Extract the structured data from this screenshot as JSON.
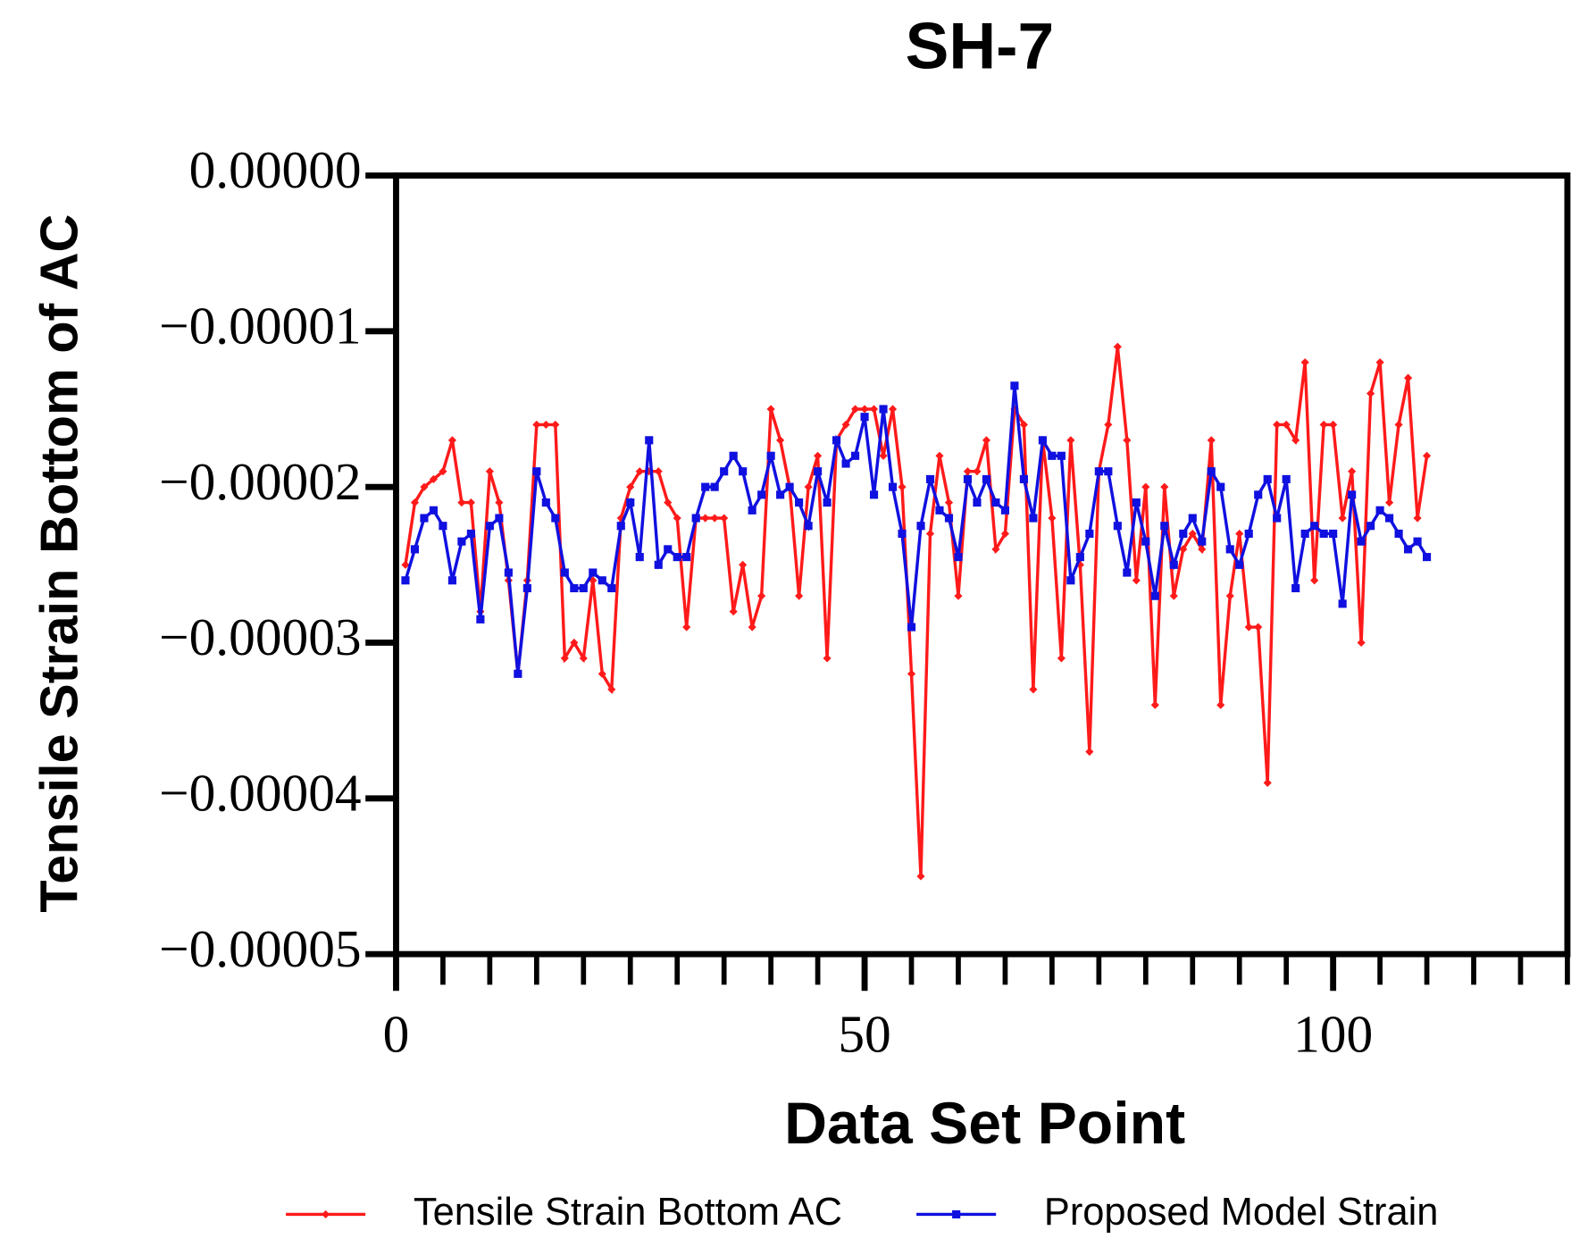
{
  "chart_data": {
    "type": "line",
    "title": "SH-7",
    "xlabel": "Data Set Point",
    "ylabel": "Tensile Strain Bottom of AC",
    "xlim": [
      0,
      125
    ],
    "xticks": [
      0,
      50,
      100
    ],
    "ylim": [
      -5e-05,
      0
    ],
    "yticks": [
      {
        "value": 0,
        "label": "0.00000"
      },
      {
        "value": -1e-05,
        "label": "−0.00001"
      },
      {
        "value": -2e-05,
        "label": "−0.00002"
      },
      {
        "value": -3e-05,
        "label": "−0.00003"
      },
      {
        "value": -4e-05,
        "label": "−0.00004"
      },
      {
        "value": -5e-05,
        "label": "−0.00005"
      }
    ],
    "legend": "bottom",
    "x": [
      1,
      2,
      3,
      4,
      5,
      6,
      7,
      8,
      9,
      10,
      11,
      12,
      13,
      14,
      15,
      16,
      17,
      18,
      19,
      20,
      21,
      22,
      23,
      24,
      25,
      26,
      27,
      28,
      29,
      30,
      31,
      32,
      33,
      34,
      35,
      36,
      37,
      38,
      39,
      40,
      41,
      42,
      43,
      44,
      45,
      46,
      47,
      48,
      49,
      50,
      51,
      52,
      53,
      54,
      55,
      56,
      57,
      58,
      59,
      60,
      61,
      62,
      63,
      64,
      65,
      66,
      67,
      68,
      69,
      70,
      71,
      72,
      73,
      74,
      75,
      76,
      77,
      78,
      79,
      80,
      81,
      82,
      83,
      84,
      85,
      86,
      87,
      88,
      89,
      90,
      91,
      92,
      93,
      94,
      95,
      96,
      97,
      98,
      99,
      100,
      101,
      102,
      103,
      104,
      105,
      106,
      107,
      108,
      109,
      110
    ],
    "series": [
      {
        "name": "Tensile Strain Bottom AC",
        "color": "#ff1a1a",
        "marker": "diamond",
        "values": [
          -2.5e-05,
          -2.1e-05,
          -2e-05,
          -1.95e-05,
          -1.9e-05,
          -1.7e-05,
          -2.1e-05,
          -2.1e-05,
          -2.8e-05,
          -1.9e-05,
          -2.1e-05,
          -2.6e-05,
          -3.2e-05,
          -2.6e-05,
          -1.6e-05,
          -1.6e-05,
          -1.6e-05,
          -3.1e-05,
          -3e-05,
          -3.1e-05,
          -2.6e-05,
          -3.2e-05,
          -3.3e-05,
          -2.2e-05,
          -2e-05,
          -1.9e-05,
          -1.9e-05,
          -1.9e-05,
          -2.1e-05,
          -2.2e-05,
          -2.9e-05,
          -2.2e-05,
          -2.2e-05,
          -2.2e-05,
          -2.2e-05,
          -2.8e-05,
          -2.5e-05,
          -2.9e-05,
          -2.7e-05,
          -1.5e-05,
          -1.7e-05,
          -2e-05,
          -2.7e-05,
          -2e-05,
          -1.8e-05,
          -3.1e-05,
          -1.7e-05,
          -1.6e-05,
          -1.5e-05,
          -1.5e-05,
          -1.5e-05,
          -1.8e-05,
          -1.5e-05,
          -2e-05,
          -3.2e-05,
          -4.5e-05,
          -2.3e-05,
          -1.8e-05,
          -2.1e-05,
          -2.7e-05,
          -1.9e-05,
          -1.9e-05,
          -1.7e-05,
          -2.4e-05,
          -2.3e-05,
          -1.5e-05,
          -1.6e-05,
          -3.3e-05,
          -1.7e-05,
          -2.2e-05,
          -3.1e-05,
          -1.7e-05,
          -2.5e-05,
          -3.7e-05,
          -1.9e-05,
          -1.6e-05,
          -1.1e-05,
          -1.7e-05,
          -2.6e-05,
          -2e-05,
          -3.4e-05,
          -2e-05,
          -2.7e-05,
          -2.4e-05,
          -2.3e-05,
          -2.4e-05,
          -1.7e-05,
          -3.4e-05,
          -2.7e-05,
          -2.3e-05,
          -2.9e-05,
          -2.9e-05,
          -3.9e-05,
          -1.6e-05,
          -1.6e-05,
          -1.7e-05,
          -1.2e-05,
          -2.6e-05,
          -1.6e-05,
          -1.6e-05,
          -2.2e-05,
          -1.9e-05,
          -3e-05,
          -1.4e-05,
          -1.2e-05,
          -2.1e-05,
          -1.6e-05,
          -1.3e-05,
          -2.2e-05,
          -1.8e-05
        ]
      },
      {
        "name": "Proposed Model Strain",
        "color": "#1010e0",
        "marker": "square",
        "values": [
          -2.6e-05,
          -2.4e-05,
          -2.2e-05,
          -2.15e-05,
          -2.25e-05,
          -2.6e-05,
          -2.35e-05,
          -2.3e-05,
          -2.85e-05,
          -2.25e-05,
          -2.2e-05,
          -2.55e-05,
          -3.2e-05,
          -2.65e-05,
          -1.9e-05,
          -2.1e-05,
          -2.2e-05,
          -2.55e-05,
          -2.65e-05,
          -2.65e-05,
          -2.55e-05,
          -2.6e-05,
          -2.65e-05,
          -2.25e-05,
          -2.1e-05,
          -2.45e-05,
          -1.7e-05,
          -2.5e-05,
          -2.4e-05,
          -2.45e-05,
          -2.45e-05,
          -2.2e-05,
          -2e-05,
          -2e-05,
          -1.9e-05,
          -1.8e-05,
          -1.9e-05,
          -2.15e-05,
          -2.05e-05,
          -1.8e-05,
          -2.05e-05,
          -2e-05,
          -2.1e-05,
          -2.25e-05,
          -1.9e-05,
          -2.1e-05,
          -1.7e-05,
          -1.85e-05,
          -1.8e-05,
          -1.55e-05,
          -2.05e-05,
          -1.5e-05,
          -2e-05,
          -2.3e-05,
          -2.9e-05,
          -2.25e-05,
          -1.95e-05,
          -2.15e-05,
          -2.2e-05,
          -2.45e-05,
          -1.95e-05,
          -2.1e-05,
          -1.95e-05,
          -2.1e-05,
          -2.15e-05,
          -1.35e-05,
          -1.95e-05,
          -2.2e-05,
          -1.7e-05,
          -1.8e-05,
          -1.8e-05,
          -2.6e-05,
          -2.45e-05,
          -2.3e-05,
          -1.9e-05,
          -1.9e-05,
          -2.25e-05,
          -2.55e-05,
          -2.1e-05,
          -2.35e-05,
          -2.7e-05,
          -2.25e-05,
          -2.5e-05,
          -2.3e-05,
          -2.2e-05,
          -2.35e-05,
          -1.9e-05,
          -2e-05,
          -2.4e-05,
          -2.5e-05,
          -2.3e-05,
          -2.05e-05,
          -1.95e-05,
          -2.2e-05,
          -1.95e-05,
          -2.65e-05,
          -2.3e-05,
          -2.25e-05,
          -2.3e-05,
          -2.3e-05,
          -2.75e-05,
          -2.05e-05,
          -2.35e-05,
          -2.25e-05,
          -2.15e-05,
          -2.2e-05,
          -2.3e-05,
          -2.4e-05,
          -2.35e-05,
          -2.45e-05
        ]
      }
    ]
  }
}
